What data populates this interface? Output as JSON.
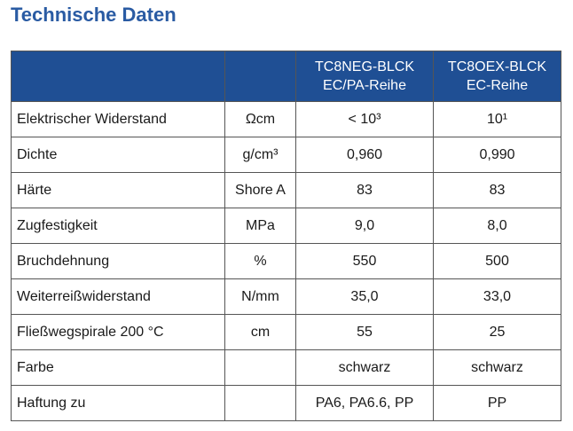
{
  "title": "Technische Daten",
  "table": {
    "header": [
      null,
      null,
      [
        "TC8NEG-BLCK",
        "EC/PA-Reihe"
      ],
      [
        "TC8OEX-BLCK",
        "EC-Reihe"
      ]
    ],
    "rows": [
      [
        "Elektrischer Widerstand",
        "Ωcm",
        "< 10³",
        "10¹"
      ],
      [
        "Dichte",
        "g/cm³",
        "0,960",
        "0,990"
      ],
      [
        "Härte",
        "Shore A",
        "83",
        "83"
      ],
      [
        "Zugfestigkeit",
        "MPa",
        "9,0",
        "8,0"
      ],
      [
        "Bruchdehnung",
        "%",
        "550",
        "500"
      ],
      [
        "Weiterreißwiderstand",
        "N/mm",
        "35,0",
        "33,0"
      ],
      [
        "Fließwegspirale 200 °C",
        "cm",
        "55",
        "25"
      ],
      [
        "Farbe",
        null,
        "schwarz",
        "schwarz"
      ],
      [
        "Haftung zu",
        null,
        "PA6, PA6.6, PP",
        "PP"
      ]
    ]
  }
}
